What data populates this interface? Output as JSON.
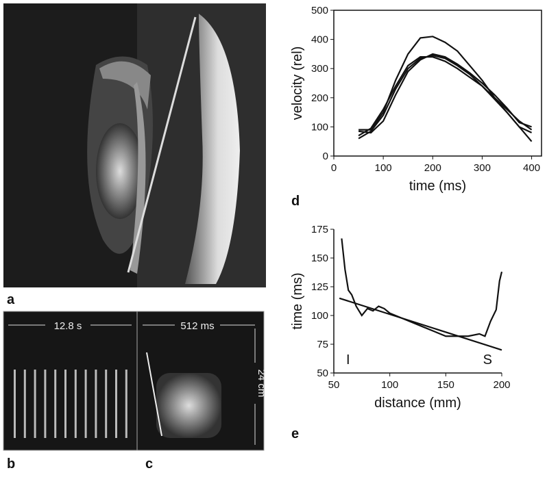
{
  "figure": {
    "panel_labels": [
      "a",
      "b",
      "c"
    ],
    "image_annotations": [
      "12.8 s",
      "512 ms",
      "24 cm"
    ]
  },
  "chart_data": [
    {
      "type": "line",
      "panel_label": "d",
      "xlabel": "time (ms)",
      "ylabel": "velocity (rel)",
      "x": [
        50,
        75,
        100,
        125,
        150,
        175,
        200,
        225,
        250,
        275,
        300,
        325,
        350,
        375,
        400
      ],
      "series": [
        {
          "color": "#111111",
          "values": [
            90,
            90,
            150,
            260,
            350,
            405,
            410,
            390,
            360,
            310,
            260,
            200,
            150,
            100,
            80
          ]
        },
        {
          "color": "#111111",
          "values": [
            60,
            85,
            140,
            230,
            300,
            335,
            345,
            335,
            310,
            280,
            240,
            195,
            150,
            100,
            50
          ]
        },
        {
          "color": "#111111",
          "values": [
            85,
            80,
            120,
            210,
            290,
            330,
            350,
            340,
            315,
            285,
            250,
            210,
            165,
            115,
            100
          ]
        },
        {
          "color": "#111111",
          "values": [
            70,
            95,
            160,
            240,
            310,
            340,
            340,
            325,
            300,
            270,
            240,
            200,
            160,
            120,
            90
          ]
        }
      ],
      "xlim": [
        0,
        420
      ],
      "ylim": [
        0,
        500
      ],
      "xticks": [
        0,
        100,
        200,
        300,
        400
      ],
      "yticks": [
        0,
        100,
        200,
        300,
        400,
        500
      ],
      "frame": true
    },
    {
      "type": "line",
      "panel_label": "e",
      "xlabel": "distance (mm)",
      "ylabel": "time (ms)",
      "x": [
        57,
        60,
        63,
        66,
        70,
        75,
        80,
        85,
        90,
        95,
        100,
        110,
        120,
        130,
        140,
        150,
        160,
        170,
        180,
        185,
        190,
        195,
        198,
        200
      ],
      "series": [
        {
          "color": "#111111",
          "values": [
            167,
            140,
            122,
            118,
            108,
            100,
            106,
            104,
            108,
            106,
            102,
            98,
            94,
            90,
            86,
            82,
            82,
            82,
            84,
            82,
            95,
            105,
            130,
            138
          ]
        },
        {
          "color": "#111111",
          "x": [
            55,
            200
          ],
          "values": [
            115,
            70
          ]
        }
      ],
      "annotations": [
        "I",
        "S"
      ],
      "xlim": [
        50,
        200
      ],
      "ylim": [
        50,
        175
      ],
      "xticks": [
        50,
        100,
        150,
        200
      ],
      "yticks": [
        50,
        75,
        100,
        125,
        150,
        175
      ],
      "frame": false
    }
  ]
}
